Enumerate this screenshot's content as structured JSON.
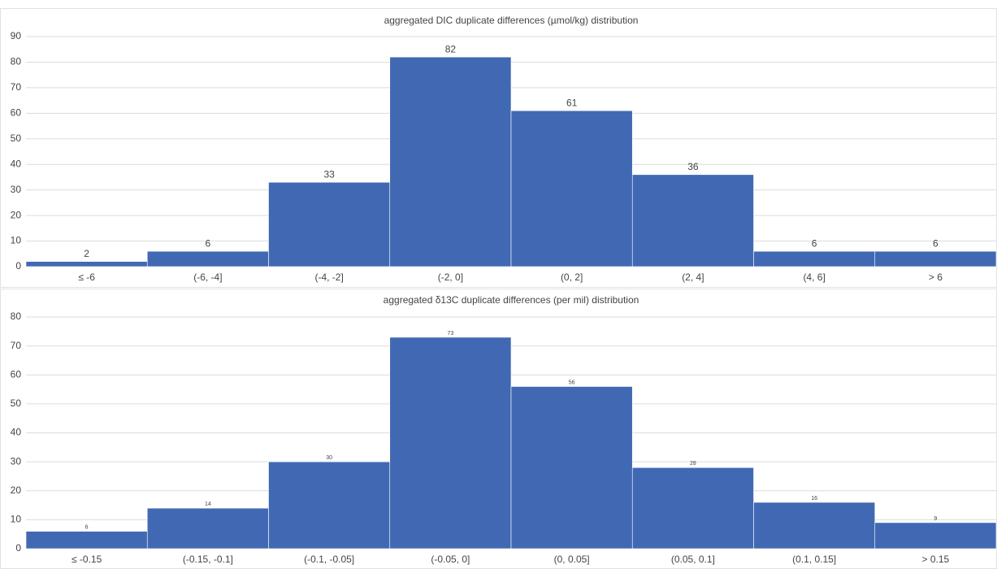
{
  "chart_data": [
    {
      "type": "bar",
      "title": "aggregated DIC duplicate differences (µmol/kg) distribution",
      "categories": [
        "≤ -6",
        "(-6, -4]",
        "(-4, -2]",
        "(-2, 0]",
        "(0, 2]",
        "(2, 4]",
        "(4, 6]",
        "> 6"
      ],
      "values": [
        2,
        6,
        33,
        82,
        61,
        36,
        6,
        6
      ],
      "color": "#4169b3",
      "ylim": [
        0,
        90
      ],
      "yticks": [
        0,
        10,
        20,
        30,
        40,
        50,
        60,
        70,
        80,
        90
      ],
      "grid": true
    },
    {
      "type": "bar",
      "title": "aggregated δ13C duplicate differences (per mil) distribution",
      "categories": [
        "≤ -0.15",
        "(-0.15, -0.1]",
        "(-0.1, -0.05]",
        "(-0.05, 0]",
        "(0, 0.05]",
        "(0.05, 0.1]",
        "(0.1, 0.15]",
        "> 0.15"
      ],
      "values": [
        6,
        14,
        30,
        73,
        56,
        28,
        16,
        9
      ],
      "color": "#4169b3",
      "ylim": [
        0,
        80
      ],
      "yticks": [
        0,
        10,
        20,
        30,
        40,
        50,
        60,
        70,
        80
      ],
      "grid": true
    }
  ]
}
